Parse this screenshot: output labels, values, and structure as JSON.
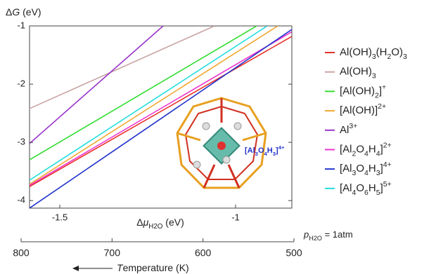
{
  "chart_data": {
    "type": "line",
    "ylabel": "ΔG (eV)",
    "xlabel": "ΔμH2O (eV)",
    "xlim": [
      -1.586,
      -0.84
    ],
    "ylim": [
      -4.13,
      -1
    ],
    "xticks": [
      -1.5,
      -1
    ],
    "yticks": [
      -1,
      -2,
      -3,
      -4
    ],
    "series": [
      {
        "name": "Al(OH)3(H2O)3",
        "color": "#e8302a",
        "x": [
          -1.586,
          -0.84
        ],
        "values": [
          -3.76,
          -1.18
        ]
      },
      {
        "name": "Al(OH)3",
        "color": "#c9a3a3",
        "x": [
          -1.586,
          -1.06
        ],
        "values": [
          -2.42,
          -1
        ]
      },
      {
        "name": "[Al(OH)2]+",
        "color": "#33dd33",
        "x": [
          -1.586,
          -0.94
        ],
        "values": [
          -3.3,
          -1
        ]
      },
      {
        "name": "[Al(OH)]2+",
        "color": "#f0a830",
        "x": [
          -1.586,
          -0.88
        ],
        "values": [
          -3.72,
          -1
        ]
      },
      {
        "name": "Al3+",
        "color": "#9933cc",
        "x": [
          -1.586,
          -1.206
        ],
        "values": [
          -3.02,
          -1
        ]
      },
      {
        "name": "[Al2O4H4]2+",
        "color": "#ee33cc",
        "x": [
          -1.586,
          -0.84
        ],
        "values": [
          -3.74,
          -1.1
        ]
      },
      {
        "name": "[Al3O4H3]4+",
        "color": "#2233cc",
        "x": [
          -1.586,
          -0.84
        ],
        "values": [
          -4.13,
          -1.06
        ]
      },
      {
        "name": "[Al4O6H5]5+",
        "color": "#22dddd",
        "x": [
          -1.586,
          -0.91
        ],
        "values": [
          -3.65,
          -1
        ]
      }
    ],
    "inset_label": "[Al3O4H3]4+",
    "x2lim": [
      800,
      500
    ],
    "x2ticks": [
      800,
      700,
      600,
      500
    ],
    "x2_note": "pH2O = 1atm",
    "x2label": "Temperature (K)"
  }
}
